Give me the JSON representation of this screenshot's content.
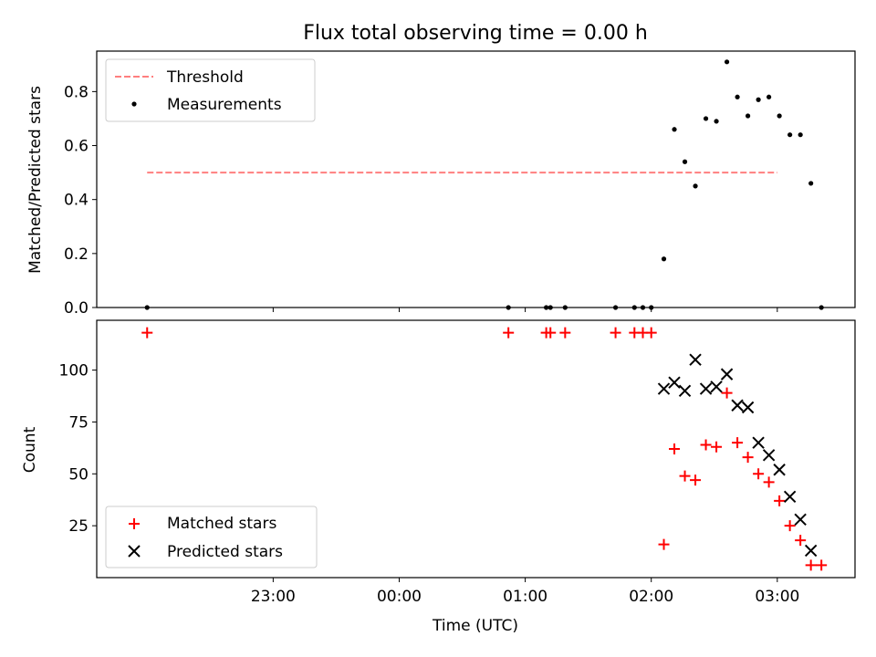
{
  "chart_data": [
    {
      "type": "scatter",
      "title": "Flux total observing time = 0.00 h",
      "xlabel": "",
      "ylabel": "Matched/Predicted stars",
      "ylim": [
        0,
        0.95
      ],
      "yticks": [
        "0.0",
        "0.2",
        "0.4",
        "0.6",
        "0.8"
      ],
      "ytick_values": [
        0.0,
        0.2,
        0.4,
        0.6,
        0.8
      ],
      "legend_position": "top-left",
      "series": [
        {
          "name": "Threshold",
          "kind": "dashed-line",
          "color": "#ff7f7f",
          "x": [
            "22:00",
            "03:00"
          ],
          "y": [
            0.5,
            0.5
          ]
        },
        {
          "name": "Measurements",
          "kind": "points",
          "color": "#000000",
          "x": [
            "22:00",
            "00:52",
            "01:10",
            "01:12",
            "01:19",
            "01:43",
            "01:52",
            "01:56",
            "02:00",
            "02:06",
            "02:11",
            "02:16",
            "02:21",
            "02:26",
            "02:31",
            "02:36",
            "02:41",
            "02:46",
            "02:51",
            "02:56",
            "03:01",
            "03:06",
            "03:11",
            "03:16",
            "03:21"
          ],
          "y": [
            0.0,
            0.0,
            0.0,
            0.0,
            0.0,
            0.0,
            0.0,
            0.0,
            0.0,
            0.18,
            0.66,
            0.54,
            0.45,
            0.7,
            0.69,
            0.91,
            0.78,
            0.71,
            0.77,
            0.78,
            0.71,
            0.64,
            0.64,
            0.46,
            0.0
          ]
        }
      ]
    },
    {
      "type": "scatter",
      "title": "",
      "xlabel": "Time (UTC)",
      "ylabel": "Count",
      "ylim": [
        0,
        124
      ],
      "yticks": [
        "25",
        "50",
        "75",
        "100"
      ],
      "ytick_values": [
        25,
        50,
        75,
        100
      ],
      "xticks": [
        "23:00",
        "00:00",
        "01:00",
        "02:00",
        "03:00"
      ],
      "xtick_values": [
        "23:00",
        "00:00",
        "01:00",
        "02:00",
        "03:00"
      ],
      "legend_position": "bottom-left",
      "series": [
        {
          "name": "Matched stars",
          "kind": "plus",
          "color": "#ff0000",
          "x": [
            "22:00",
            "00:52",
            "01:10",
            "01:12",
            "01:19",
            "01:43",
            "01:52",
            "01:56",
            "02:00",
            "02:06",
            "02:11",
            "02:16",
            "02:21",
            "02:26",
            "02:31",
            "02:36",
            "02:41",
            "02:46",
            "02:51",
            "02:56",
            "03:01",
            "03:06",
            "03:11",
            "03:16",
            "03:21"
          ],
          "y": [
            118,
            118,
            118,
            118,
            118,
            118,
            118,
            118,
            118,
            16,
            62,
            49,
            47,
            64,
            63,
            89,
            65,
            58,
            50,
            46,
            37,
            25,
            18,
            6,
            6
          ]
        },
        {
          "name": "Predicted stars",
          "kind": "x",
          "color": "#000000",
          "x": [
            "02:06",
            "02:11",
            "02:16",
            "02:21",
            "02:26",
            "02:31",
            "02:36",
            "02:41",
            "02:46",
            "02:51",
            "02:56",
            "03:01",
            "03:06",
            "03:11",
            "03:16"
          ],
          "y": [
            91,
            94,
            90,
            105,
            91,
            92,
            98,
            83,
            82,
            65,
            59,
            52,
            39,
            28,
            13
          ]
        }
      ]
    }
  ],
  "x_axis": {
    "min": "21:36",
    "max": "03:37"
  }
}
